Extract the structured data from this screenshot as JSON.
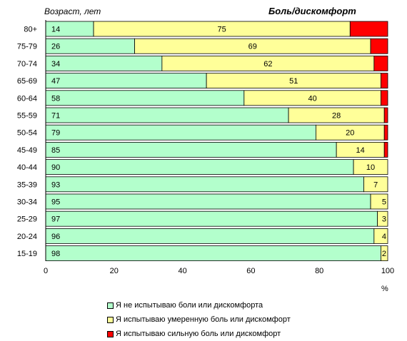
{
  "chart_data": {
    "type": "bar",
    "orientation": "horizontal",
    "stacked": true,
    "title": "Боль/дискомфорт",
    "ylabel": "Возраст, лет",
    "xlabel": "%",
    "xlim": [
      0,
      100
    ],
    "xticks": [
      "0",
      "20",
      "40",
      "60",
      "80",
      "100"
    ],
    "categories": [
      "80+",
      "75-79",
      "70-74",
      "65-69",
      "60-64",
      "55-59",
      "50-54",
      "45-49",
      "40-44",
      "35-39",
      "30-34",
      "25-29",
      "20-24",
      "15-19"
    ],
    "series": [
      {
        "name": "Я не испытываю боли или дискомфорта",
        "color": "#b3ffcc",
        "values": [
          14,
          26,
          34,
          47,
          58,
          71,
          79,
          85,
          90,
          93,
          95,
          97,
          96,
          98
        ]
      },
      {
        "name": "Я испытываю умеренную боль или дискомфорт",
        "color": "#ffff99",
        "values": [
          75,
          69,
          62,
          51,
          40,
          28,
          20,
          14,
          10,
          7,
          5,
          3,
          4,
          2
        ]
      },
      {
        "name": "Я испытываю сильную боль или дискомфорт",
        "color": "#ff0000",
        "values": [
          11,
          5,
          4,
          2,
          2,
          1,
          1,
          1,
          0,
          0,
          0,
          0,
          0,
          0
        ]
      }
    ],
    "labeled_series": [
      0,
      1
    ],
    "grid": false,
    "legend_position": "bottom"
  }
}
